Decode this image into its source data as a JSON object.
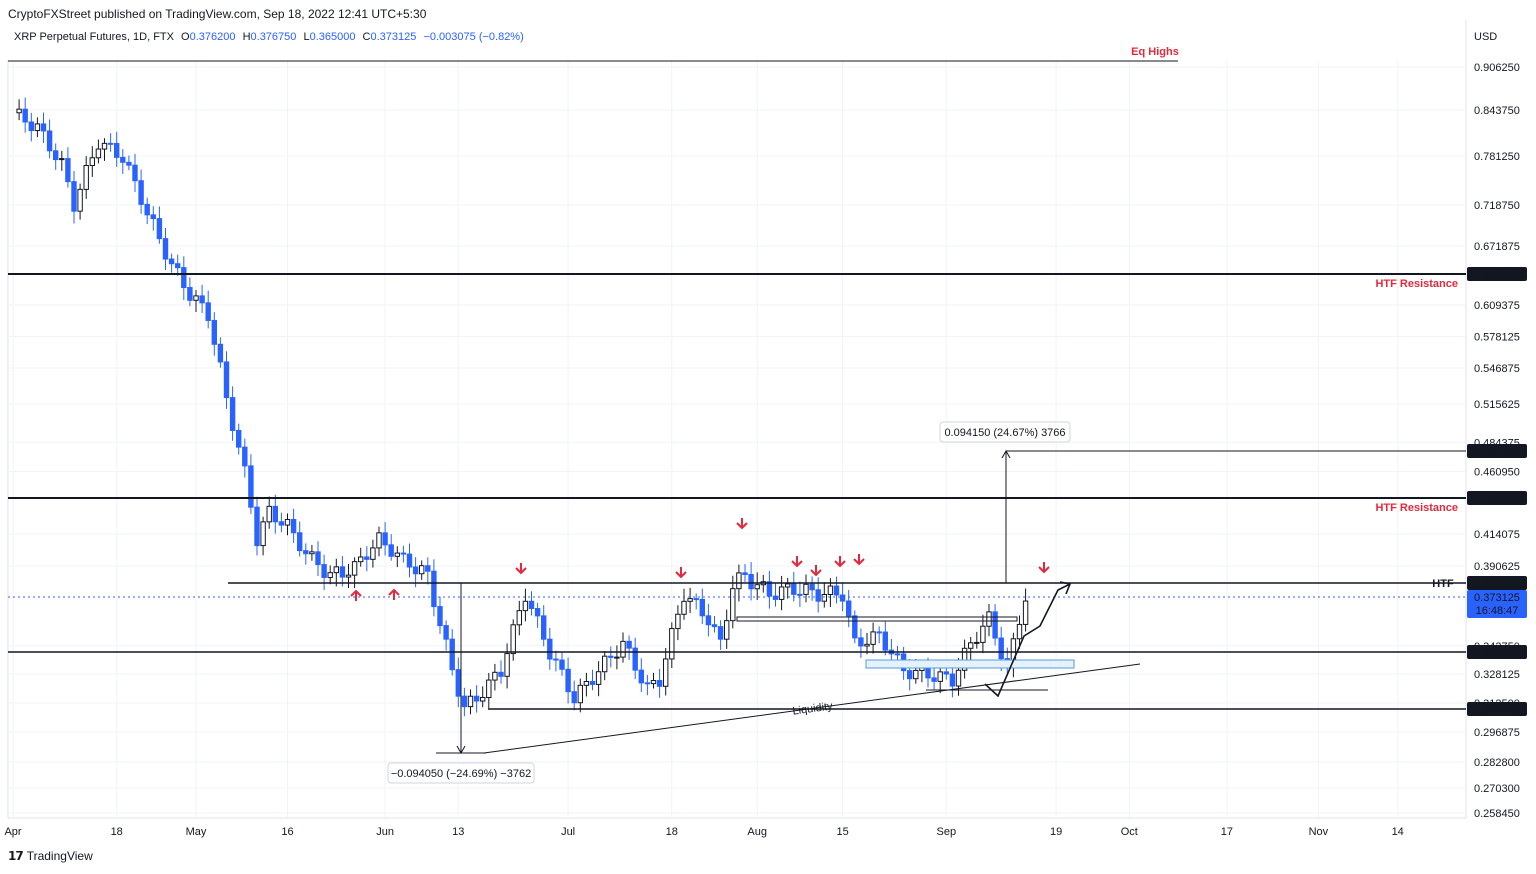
{
  "header": {
    "published": "CryptoFXStreet published on TradingView.com, Sep 18, 2022 12:41 UTC+5:30",
    "symbol": "XRP Perpetual Futures, 1D, FTX",
    "open_label": "O",
    "open": "0.376200",
    "high_label": "H",
    "high": "0.376750",
    "low_label": "L",
    "low": "0.365000",
    "close_label": "C",
    "close": "0.373125",
    "change": "−0.003075 (−0.82%)"
  },
  "footer": {
    "brand": "TradingView"
  },
  "chart_data": {
    "type": "candlestick",
    "currency": "USD",
    "y_ticks": [
      "0.906250",
      "0.843750",
      "0.781250",
      "0.718750",
      "0.671875",
      "0.609375",
      "0.578125",
      "0.546875",
      "0.515625",
      "0.484375",
      "0.460950",
      "0.414075",
      "0.390625",
      "0.343750",
      "0.328125",
      "0.312500",
      "0.296875",
      "0.282800",
      "0.270300",
      "0.258450"
    ],
    "x_ticks": [
      "Apr",
      "18",
      "May",
      "16",
      "Jun",
      "13",
      "Jul",
      "18",
      "Aug",
      "15",
      "Sep",
      "19",
      "Oct",
      "17",
      "Nov",
      "14"
    ],
    "horizontal_levels": [
      {
        "value": 0.63995,
        "label": "0.639950",
        "annotation": "HTF Resistance"
      },
      {
        "value": 0.4399,
        "label": "0.439900",
        "annotation": "HTF Resistance"
      },
      {
        "value": 0.38125,
        "label": "0.381250",
        "annotation": "HTF"
      },
      {
        "value": 0.340025,
        "label": "0.340025",
        "annotation": ""
      },
      {
        "value": 0.309225,
        "label": "0.309225",
        "annotation": ""
      }
    ],
    "eq_highs_label": "Eq Highs",
    "last_price": {
      "value": 0.373125,
      "label": "0.373125",
      "countdown": "16:48:47"
    },
    "target": {
      "value": 0.47725,
      "label": "0.477250",
      "measure": "0.094150 (24.67%) 3766"
    },
    "drop_measure": "−0.094050 (−24.69%) −3762",
    "trendline_label": "Liquidity"
  }
}
